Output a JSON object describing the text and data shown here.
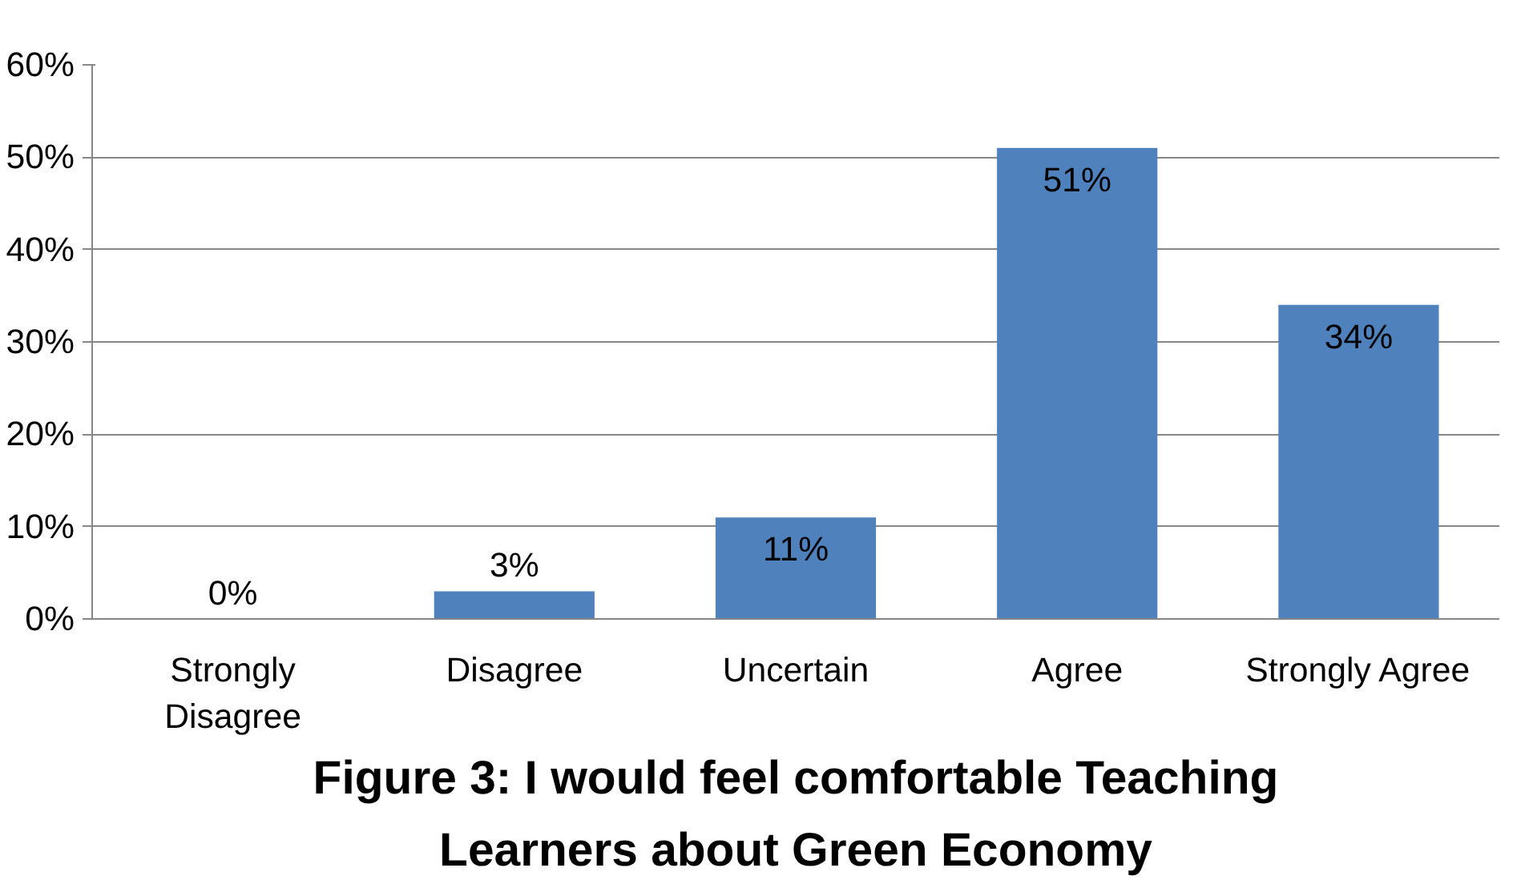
{
  "chart_data": {
    "type": "bar",
    "title": "Figure 3: I would feel comfortable Teaching\nLearners about Green Economy",
    "categories": [
      "Strongly\nDisagree",
      "Disagree",
      "Uncertain",
      "Agree",
      "Strongly Agree"
    ],
    "values": [
      0,
      3,
      11,
      51,
      34
    ],
    "color": "#4f81bd",
    "value_labels": [
      "0%",
      "3%",
      "11%",
      "51%",
      "34%"
    ],
    "ylim": [
      0,
      60
    ],
    "yticks": [
      {
        "value": 0,
        "label": "0%"
      },
      {
        "value": 10,
        "label": "10%"
      },
      {
        "value": 20,
        "label": "20%"
      },
      {
        "value": 30,
        "label": "30%"
      },
      {
        "value": 40,
        "label": "40%"
      },
      {
        "value": 50,
        "label": "50%"
      },
      {
        "value": 60,
        "label": "60%"
      }
    ],
    "grid": "y"
  }
}
